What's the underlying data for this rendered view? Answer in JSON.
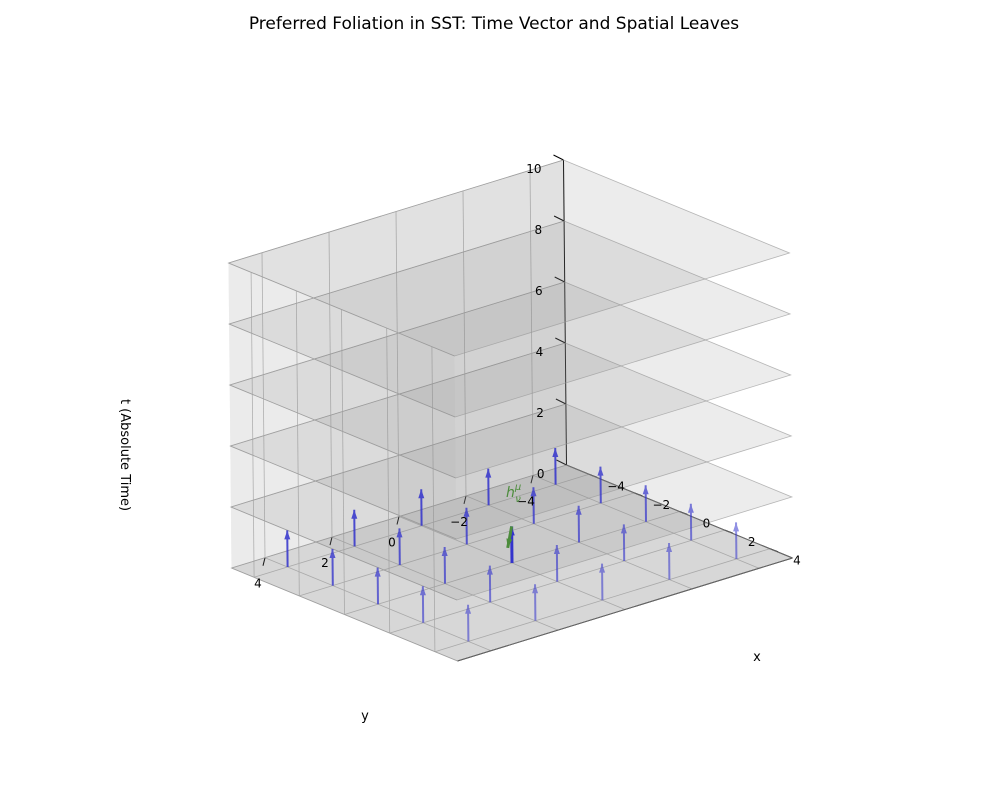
{
  "chart_data": {
    "type": "3d-quiver",
    "title": "Preferred Foliation in SST: Time Vector and Spatial Leaves",
    "xlabel": "x",
    "ylabel": "y",
    "zlabel": "t (Absolute Time)",
    "xlim": [
      -5,
      5
    ],
    "ylim": [
      -5,
      5
    ],
    "zlim": [
      0,
      10
    ],
    "x_ticks": [
      -4,
      -2,
      0,
      2,
      4
    ],
    "y_ticks": [
      -4,
      -2,
      0,
      2,
      4
    ],
    "z_ticks": [
      0,
      2,
      4,
      6,
      8,
      10
    ],
    "grid": true,
    "leaf_levels_t": [
      0,
      2,
      4,
      6,
      8,
      10
    ],
    "leaf_extent": [
      -5,
      5
    ],
    "time_vectors": {
      "grid_x": [
        -4,
        -2,
        0,
        2,
        4
      ],
      "grid_y": [
        -4,
        -2,
        0,
        2,
        4
      ],
      "base_t": 0,
      "direction": [
        0,
        0,
        1
      ],
      "length": 1.2,
      "color": "#3333cc"
    },
    "projector": {
      "label": "h^μ_ν",
      "label_main": "h",
      "label_sup": "μ",
      "label_sub": "ν",
      "origin": [
        0,
        0,
        0
      ],
      "vector": [
        0.8,
        0,
        0
      ],
      "color": "#4c8c3c",
      "time_color": "#3333cc"
    },
    "colors": {
      "leaf": "#888888",
      "pane": "#f2f2f2",
      "grid": "#b0b0b0"
    }
  }
}
